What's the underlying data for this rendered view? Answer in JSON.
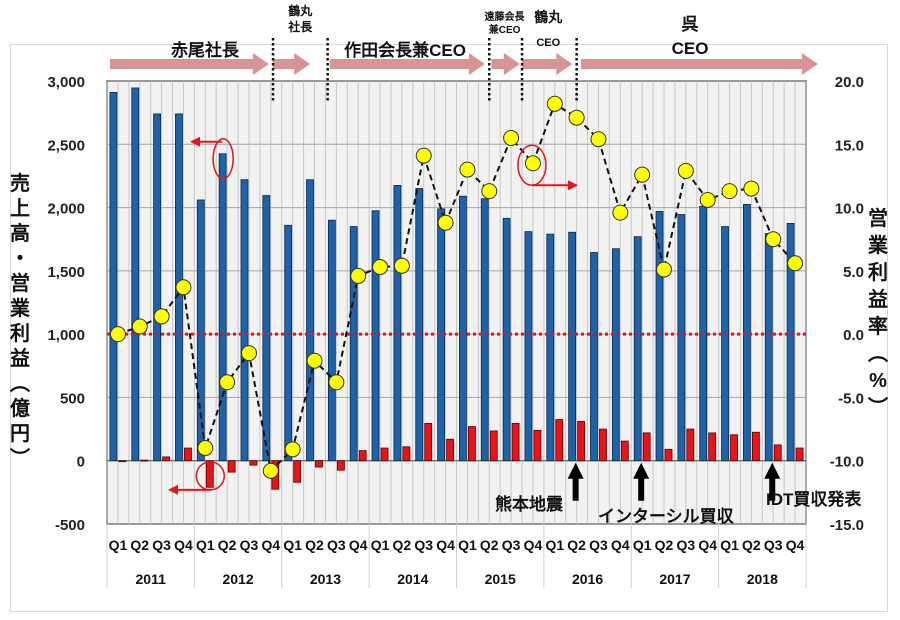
{
  "chart_data": {
    "type": "bar",
    "title": "",
    "ylabel": "売上高・営業利益（億円）",
    "y2label": "営業利益率（%）",
    "ylim": [
      -500,
      3000
    ],
    "y2lim": [
      -15,
      20
    ],
    "yticks": [
      "3,000",
      "2,500",
      "2,000",
      "1,500",
      "1,000",
      "500",
      "0",
      "-500"
    ],
    "yticks_values": [
      3000,
      2500,
      2000,
      1500,
      1000,
      500,
      0,
      -500
    ],
    "y2ticks": [
      "20.0",
      "15.0",
      "10.0",
      "5.0",
      "0.0",
      "-5.0",
      "-10.0",
      "-15.0"
    ],
    "y2ticks_values": [
      20,
      15,
      10,
      5,
      0,
      -5,
      -10,
      -15
    ],
    "grid": true,
    "years": [
      "2011",
      "2012",
      "2013",
      "2014",
      "2015",
      "2016",
      "2017",
      "2018"
    ],
    "quarters": [
      "Q1",
      "Q2",
      "Q3",
      "Q4"
    ],
    "series": [
      {
        "name": "売上高",
        "type": "bar",
        "axis": "left",
        "color": "#1f62a8",
        "values": [
          2910,
          2945,
          2740,
          2740,
          2060,
          2425,
          2220,
          2095,
          1860,
          2220,
          1900,
          1850,
          1975,
          2175,
          2150,
          1990,
          2090,
          2070,
          1915,
          1810,
          1790,
          1805,
          1645,
          1675,
          1770,
          1970,
          1945,
          2010,
          1850,
          2025,
          1795,
          1875
        ]
      },
      {
        "name": "営業利益",
        "type": "bar",
        "axis": "left",
        "color": "#e8141a",
        "values": [
          -5,
          5,
          30,
          100,
          -210,
          -90,
          -35,
          -225,
          -170,
          -50,
          -75,
          80,
          100,
          110,
          295,
          170,
          270,
          235,
          295,
          240,
          325,
          310,
          250,
          155,
          220,
          90,
          250,
          220,
          205,
          225,
          125,
          100
        ]
      },
      {
        "name": "営業利益率",
        "type": "line",
        "axis": "right",
        "color": "#ffff00",
        "values": [
          0.0,
          0.6,
          1.4,
          3.7,
          -9.0,
          -3.8,
          -1.5,
          -10.8,
          -9.1,
          -2.1,
          -3.8,
          4.6,
          5.3,
          5.4,
          14.1,
          8.8,
          13.0,
          11.3,
          15.5,
          13.5,
          18.2,
          17.1,
          15.4,
          9.6,
          12.6,
          5.1,
          12.9,
          10.6,
          11.3,
          11.5,
          7.5,
          5.6
        ]
      }
    ],
    "reference_line": {
      "axis": "right",
      "value": 0.0,
      "color": "#e8141a",
      "style": "dotted"
    },
    "eras": [
      {
        "label": "赤尾社長",
        "from_index": 0,
        "to_index": 7.5
      },
      {
        "label": "鶴丸社長",
        "from_index": 7.5,
        "to_index": 10.5
      },
      {
        "label": "作田会長兼CEO",
        "from_index": 10.5,
        "to_index": 17.5
      },
      {
        "label": "遠藤会長兼CEO",
        "from_index": 17.5,
        "to_index": 19.5
      },
      {
        "label": "鶴丸CEO",
        "from_index": 19.5,
        "to_index": 21.5
      },
      {
        "label": "呉CEO",
        "from_index": 21.5,
        "to_index": 32
      }
    ],
    "era_lines": [
      {
        "label_line1": "鶴丸",
        "label_line2": "社長"
      },
      {
        "label_line1": "遠藤会長",
        "label_line2": "兼CEO"
      },
      {
        "label_line1": "鶴丸",
        "label_line2": "CEO"
      },
      {
        "label_line1": "呉",
        "label_line2": "CEO"
      }
    ],
    "events": [
      {
        "label": "熊本地震",
        "index": 21
      },
      {
        "label": "インターシル買収",
        "index": 24
      },
      {
        "label": "IDT買収発表",
        "index": 30
      }
    ],
    "callouts": [
      {
        "index": 5,
        "series": "売上高",
        "direction": "left"
      },
      {
        "index": 4,
        "series": "営業利益",
        "direction": "left"
      },
      {
        "index": 19,
        "series": "営業利益率",
        "direction": "right"
      }
    ],
    "colors": {
      "plot_bg": "#f2f2f2",
      "era_arrow": "#d99594",
      "callout": "#e8141a",
      "left_neg_tick": "#e8141a"
    }
  }
}
